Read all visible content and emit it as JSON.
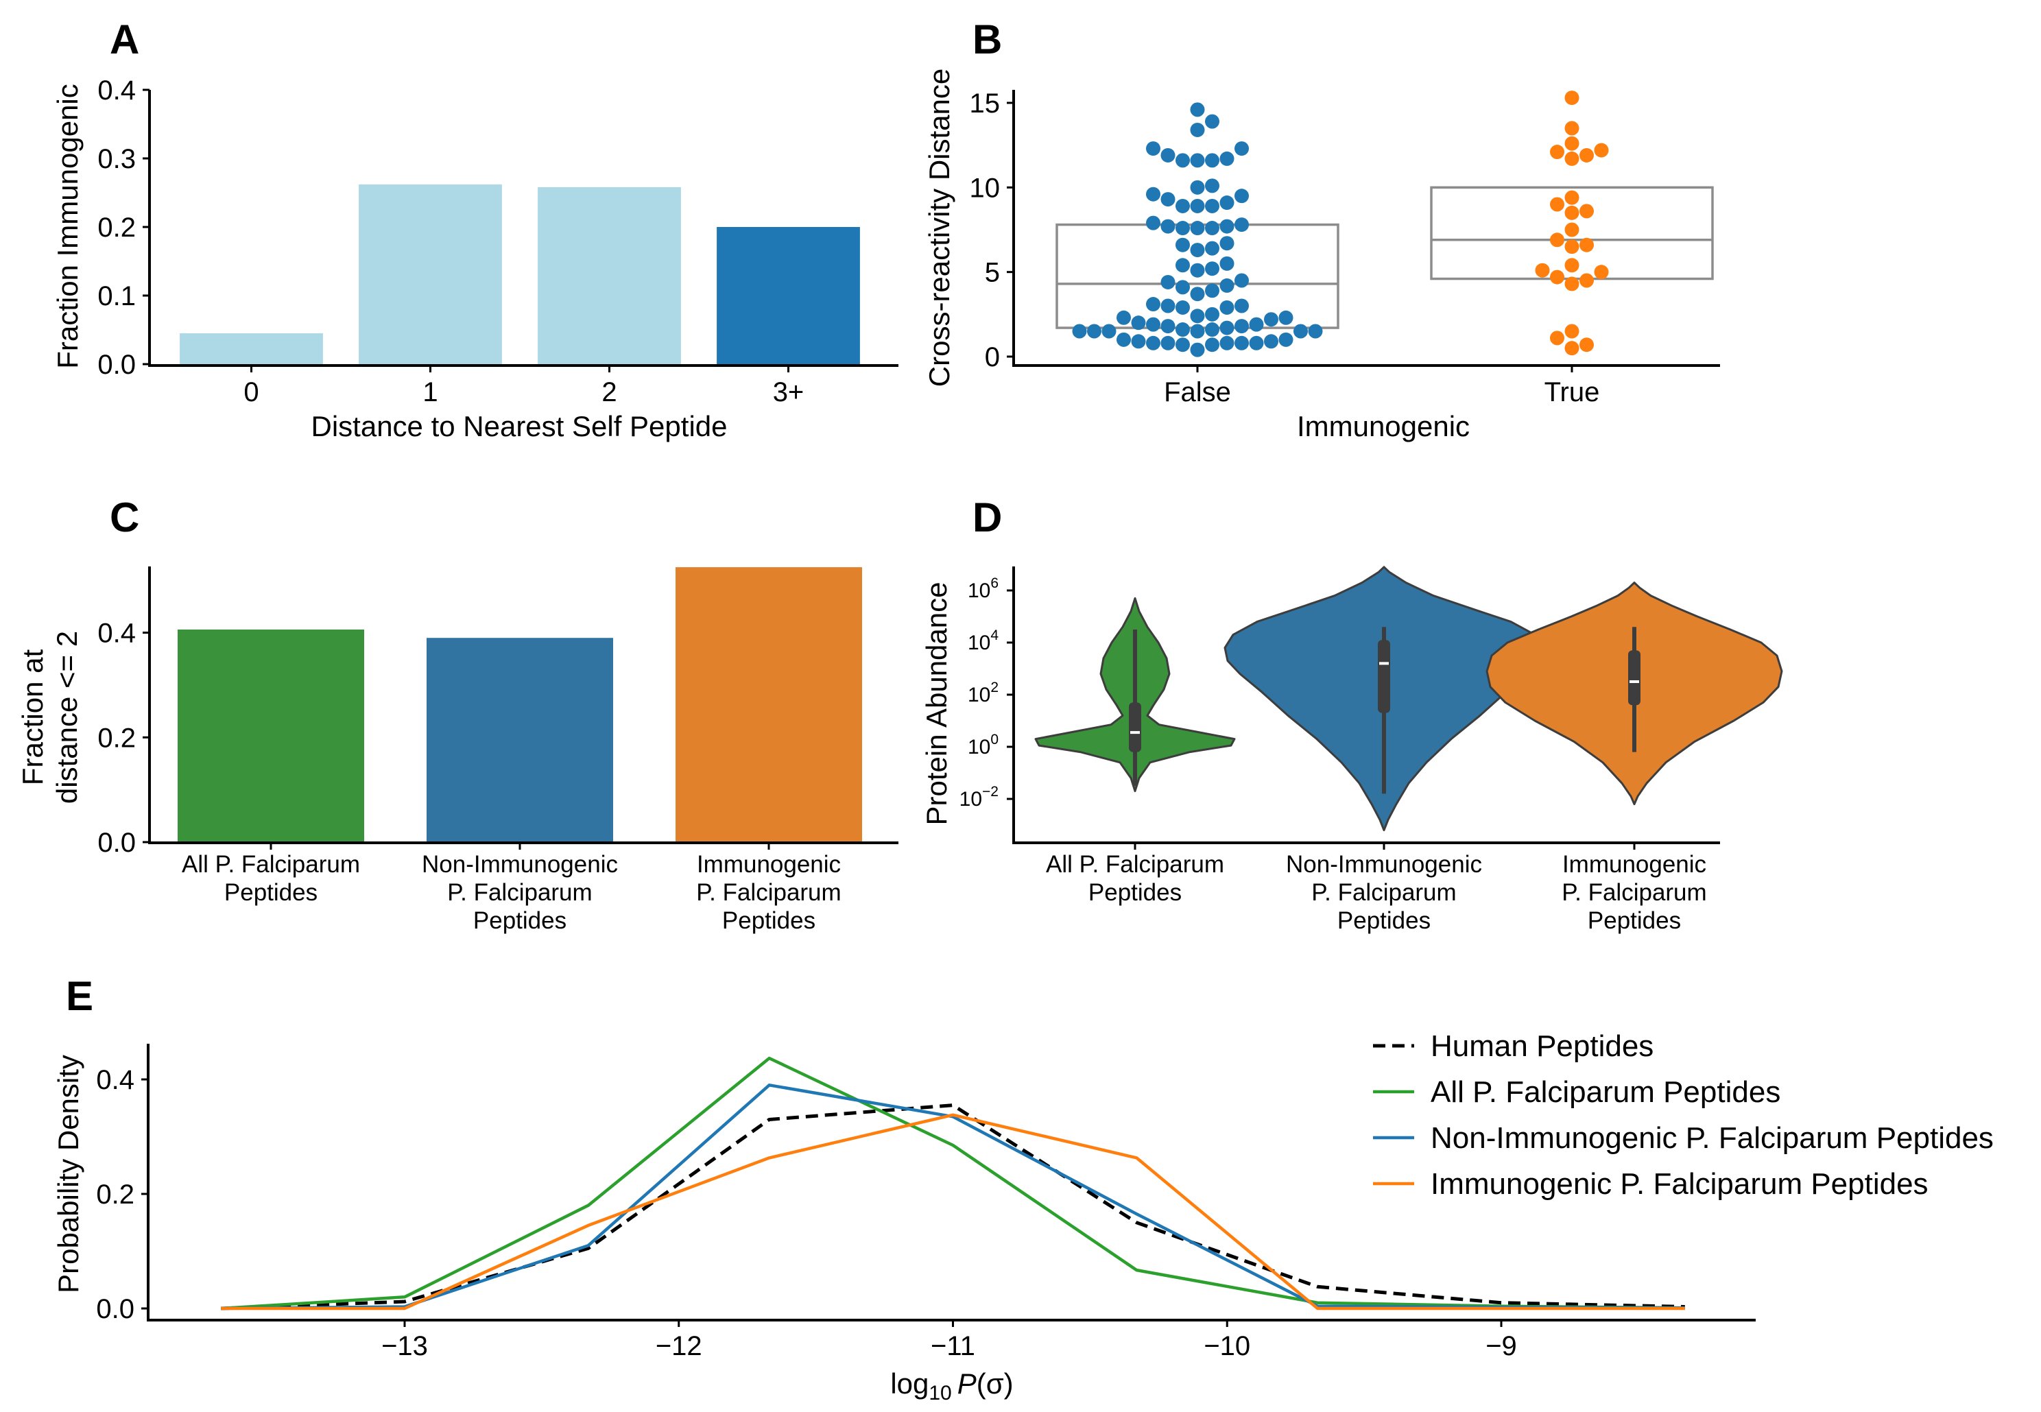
{
  "panels": {
    "A": {
      "label": "A",
      "chart_data": {
        "type": "bar",
        "categories": [
          "0",
          "1",
          "2",
          "3+"
        ],
        "values": [
          0.045,
          0.262,
          0.258,
          0.2
        ],
        "colors": [
          "#add8e6",
          "#add8e6",
          "#add8e6",
          "#1f77b4"
        ],
        "xlabel": "Distance to Nearest Self Peptide",
        "ylabel": "Fraction Immunogenic",
        "ylim": [
          0,
          0.4
        ],
        "yticks": [
          "0.0",
          "0.1",
          "0.2",
          "0.3",
          "0.4"
        ]
      }
    },
    "B": {
      "label": "B",
      "chart_data": {
        "type": "scatter",
        "subtype": "swarm with box",
        "categories": [
          "False",
          "True"
        ],
        "xlabel": "Immunogenic",
        "ylabel": "Cross-reactivity Distance",
        "ylim": [
          -0.5,
          16
        ],
        "yticks": [
          "0",
          "5",
          "10",
          "15"
        ],
        "boxes": [
          {
            "category": "False",
            "q1": 1.7,
            "median": 4.3,
            "q3": 7.8
          },
          {
            "category": "True",
            "q1": 4.6,
            "median": 6.9,
            "q3": 10.0
          }
        ],
        "series": [
          {
            "category": "False",
            "color": "#1f77b4",
            "values": [
              14.6,
              13.9,
              13.4,
              12.3,
              12.3,
              11.9,
              11.7,
              11.6,
              11.6,
              11.6,
              10.1,
              10.0,
              9.6,
              9.5,
              9.3,
              9.1,
              8.9,
              8.9,
              8.9,
              7.9,
              7.8,
              7.7,
              7.7,
              7.6,
              7.6,
              7.6,
              6.7,
              6.6,
              6.4,
              6.3,
              5.5,
              5.4,
              5.2,
              5.1,
              4.5,
              4.4,
              4.2,
              4.1,
              3.9,
              3.7,
              3.1,
              3.0,
              3.0,
              2.9,
              2.9,
              2.5,
              2.4,
              2.3,
              2.3,
              2.2,
              2.0,
              1.9,
              1.9,
              1.8,
              1.8,
              1.7,
              1.6,
              1.6,
              1.5,
              1.5,
              1.5,
              1.5,
              1.5,
              1.5,
              1.0,
              1.0,
              0.9,
              0.9,
              0.8,
              0.8,
              0.8,
              0.8,
              0.8,
              0.7,
              0.7,
              0.4
            ]
          },
          {
            "category": "True",
            "color": "#ff7f0e",
            "values": [
              15.3,
              13.5,
              12.6,
              12.2,
              12.1,
              11.9,
              11.7,
              9.4,
              9.0,
              8.6,
              8.5,
              7.5,
              6.9,
              6.6,
              6.5,
              5.4,
              5.1,
              5.0,
              4.7,
              4.5,
              4.3,
              1.5,
              1.1,
              0.7,
              0.5
            ]
          }
        ]
      }
    },
    "C": {
      "label": "C",
      "chart_data": {
        "type": "bar",
        "categories": [
          [
            "All P. Falciparum",
            "Peptides"
          ],
          [
            "Non-Immunogenic",
            "P. Falciparum",
            "Peptides"
          ],
          [
            "Immunogenic",
            "P. Falciparum",
            "Peptides"
          ]
        ],
        "values": [
          0.406,
          0.39,
          0.525
        ],
        "colors": [
          "#3a923a",
          "#3274a1",
          "#e1812c"
        ],
        "ylabel": [
          "Fraction at",
          "distance <= 2"
        ],
        "ylim": [
          0,
          0.55
        ],
        "yticks": [
          "0.0",
          "0.2",
          "0.4"
        ]
      }
    },
    "D": {
      "label": "D",
      "chart_data": {
        "type": "violin",
        "categories": [
          [
            "All P. Falciparum",
            "Peptides"
          ],
          [
            "Non-Immunogenic",
            "P. Falciparum",
            "Peptides"
          ],
          [
            "Immunogenic",
            "P. Falciparum",
            "Peptides"
          ]
        ],
        "colors": [
          "#3a923a",
          "#3274a1",
          "#e1812c"
        ],
        "ylabel": "Protein Abundance",
        "yscale": "log",
        "ylim_log10": [
          -3.5,
          7.1
        ],
        "ytick_base": "10",
        "ytick_exponents": [
          "6",
          "4",
          "2",
          "0",
          "−2"
        ],
        "ytick_values_log10": [
          6,
          4,
          2,
          0,
          -2
        ],
        "violins": [
          {
            "min_log10": -1.7,
            "max_log10": 5.7,
            "q1_log10": -0.2,
            "median_log10": 0.55,
            "q3_log10": 1.7,
            "whisker_low_log10": -1.5,
            "whisker_high_log10": 4.5
          },
          {
            "min_log10": -3.2,
            "max_log10": 6.9,
            "q1_log10": 1.3,
            "median_log10": 3.2,
            "q3_log10": 4.1,
            "whisker_low_log10": -1.8,
            "whisker_high_log10": 4.6
          },
          {
            "min_log10": -2.2,
            "max_log10": 6.3,
            "q1_log10": 1.6,
            "median_log10": 2.5,
            "q3_log10": 3.7,
            "whisker_low_log10": -0.2,
            "whisker_high_log10": 4.6
          }
        ]
      }
    },
    "E": {
      "label": "E",
      "chart_data": {
        "type": "line",
        "xlabel_base": "log",
        "xlabel_sub": "10",
        "xlabel_var": "P",
        "xlabel_arg": "(σ)",
        "ylabel": "Probability Density",
        "xlim": [
          -13.9,
          -8.0
        ],
        "ylim": [
          -0.02,
          0.46
        ],
        "xticks": [
          -13,
          -12,
          -11,
          -10,
          -9
        ],
        "xtick_labels": [
          "−13",
          "−12",
          "−11",
          "−10",
          "−9"
        ],
        "yticks": [
          0,
          0.2,
          0.4
        ],
        "ytick_labels": [
          "0.0",
          "0.2",
          "0.4"
        ],
        "x": [
          -13.67,
          -13.0,
          -12.33,
          -11.67,
          -11.0,
          -10.33,
          -9.67,
          -9.0,
          -8.33
        ],
        "series": [
          {
            "name": "Human Peptides",
            "color": "#000000",
            "dashed": true,
            "values": [
              0.0,
              0.012,
              0.105,
              0.33,
              0.355,
              0.15,
              0.038,
              0.01,
              0.003
            ]
          },
          {
            "name": "All P. Falciparum Peptides",
            "color": "#2ca02c",
            "dashed": false,
            "values": [
              0.0,
              0.02,
              0.18,
              0.437,
              0.285,
              0.067,
              0.01,
              0.004,
              0.001
            ]
          },
          {
            "name": "Non-Immunogenic P. Falciparum Peptides",
            "color": "#1f77b4",
            "dashed": false,
            "values": [
              0.0,
              0.003,
              0.11,
              0.39,
              0.335,
              0.165,
              0.004,
              0.002,
              0.001
            ]
          },
          {
            "name": "Immunogenic P. Falciparum Peptides",
            "color": "#ff7f0e",
            "dashed": false,
            "values": [
              0.0,
              0.0,
              0.145,
              0.263,
              0.338,
              0.263,
              0.0,
              0.0,
              0.0
            ]
          }
        ],
        "legend_position": "top-right"
      }
    }
  }
}
